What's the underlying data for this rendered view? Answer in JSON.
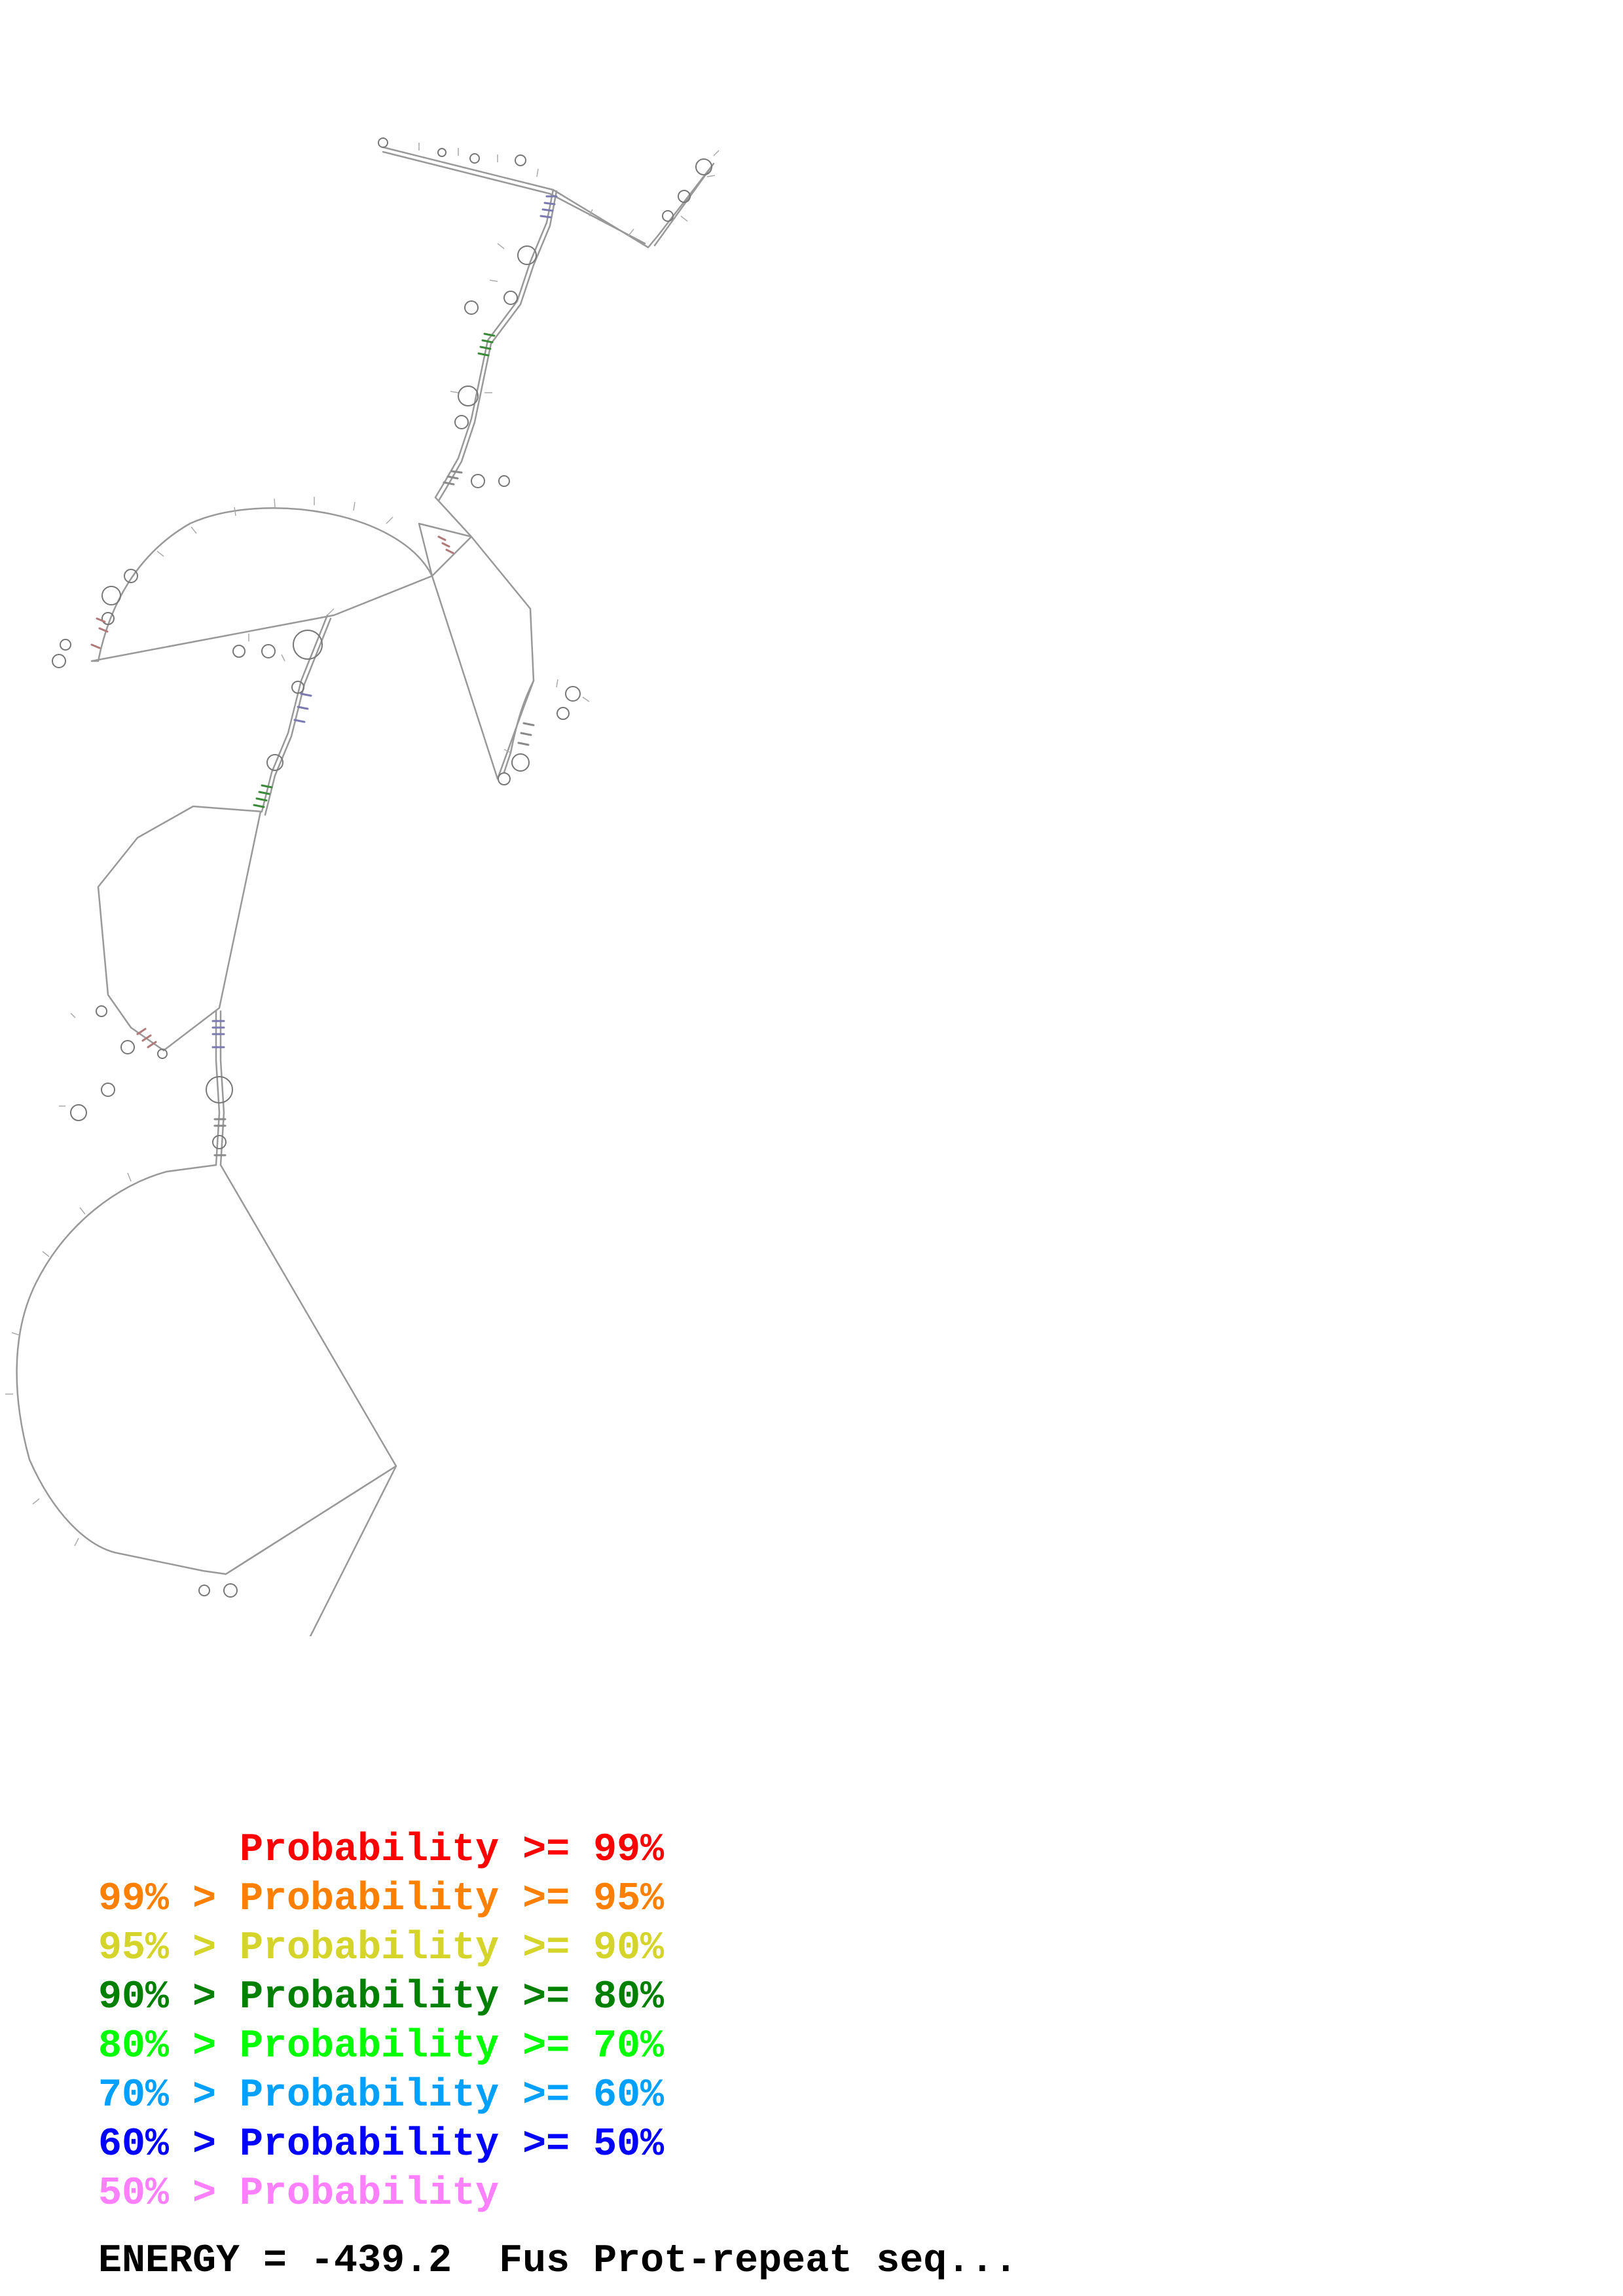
{
  "legend": {
    "rows": [
      {
        "prefix": "",
        "label": "Probability >= 99%",
        "color": "#ff0000"
      },
      {
        "prefix": "99% > ",
        "label": "Probability >= 95%",
        "color": "#ff8000"
      },
      {
        "prefix": "95% > ",
        "label": "Probability >= 90%",
        "color": "#d4d42a"
      },
      {
        "prefix": "90% > ",
        "label": "Probability >= 80%",
        "color": "#008000"
      },
      {
        "prefix": "80% > ",
        "label": "Probability >= 70%",
        "color": "#00ff00"
      },
      {
        "prefix": "70% > ",
        "label": "Probability >= 60%",
        "color": "#00a0ff"
      },
      {
        "prefix": "60% > ",
        "label": "Probability >= 50%",
        "color": "#0000ff"
      },
      {
        "prefix": "50% > ",
        "label": "Probability",
        "color": "#ff80ff"
      }
    ]
  },
  "footer": {
    "energy_text": "ENERGY = -439.2  Fus Prot-repeat seq..."
  },
  "diagram": {
    "backbone_color": "#999999",
    "pair_colors": [
      "#7a7ab0",
      "#3a8a3a",
      "#b07a7a",
      "#8a8a8a"
    ]
  }
}
